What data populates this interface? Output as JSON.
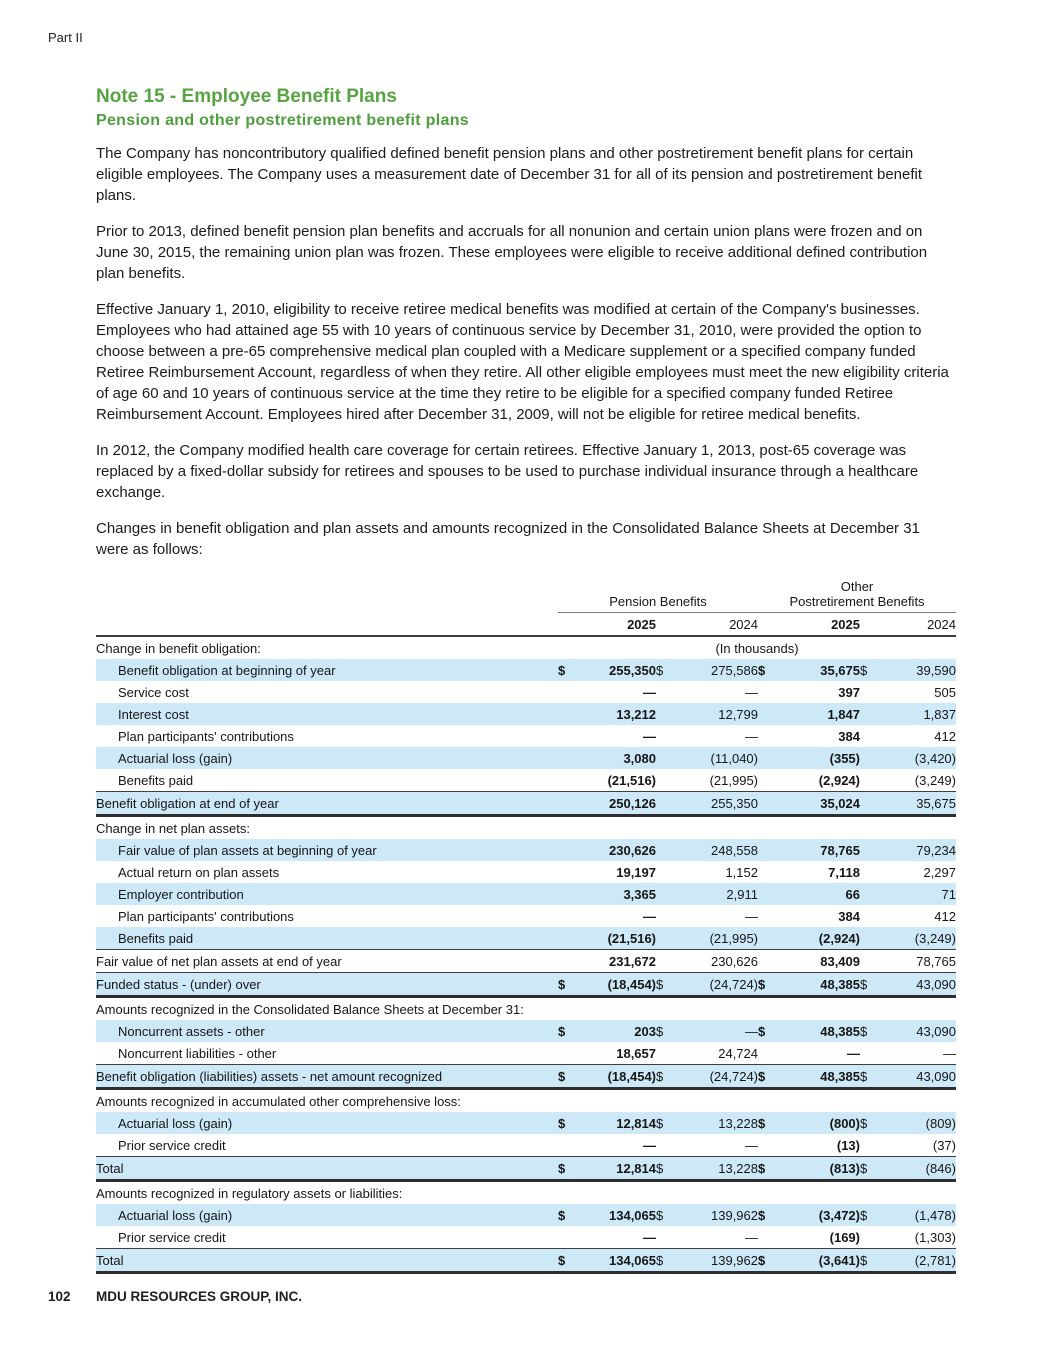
{
  "page": {
    "part_label": "Part II",
    "footer": {
      "page_number": "102",
      "company_name": "MDU RESOURCES GROUP, INC."
    },
    "colors": {
      "heading_green": "#56a442",
      "row_highlight_blue": "#cde9f7"
    }
  },
  "note": {
    "title": "Note 15 - Employee Benefit Plans",
    "subtitle": "Pension and other postretirement benefit plans",
    "paragraphs": [
      "The Company has noncontributory qualified defined benefit pension plans and other postretirement benefit plans for certain eligible employees. The Company uses a measurement date of December 31 for all of its pension and postretirement benefit plans.",
      "Prior to 2013, defined benefit pension plan benefits and accruals for all nonunion and certain union plans were frozen and on June 30, 2015, the remaining union plan was frozen. These employees were eligible to receive additional defined contribution plan benefits.",
      "Effective January 1, 2010, eligibility to receive retiree medical benefits was modified at certain of the Company's businesses. Employees who had attained age 55 with 10 years of continuous service by December 31, 2010, were provided the option to choose between a pre-65 comprehensive medical plan coupled with a Medicare supplement or a specified company funded Retiree Reimbursement Account, regardless of when they retire. All other eligible employees must meet the new eligibility criteria of age 60 and 10 years of continuous service at the time they retire to be eligible for a specified company funded Retiree Reimbursement Account. Employees hired after December 31, 2009, will not be eligible for retiree medical benefits.",
      "In 2012, the Company modified health care coverage for certain retirees. Effective January 1, 2013, post-65 coverage was replaced by a fixed-dollar subsidy for retirees and spouses to be used to purchase individual insurance through a healthcare exchange.",
      "Changes in benefit obligation and plan assets and amounts recognized in the Consolidated Balance Sheets at December 31 were as follows:"
    ]
  },
  "table": {
    "group_headers": {
      "pension": "Pension Benefits",
      "opeb_line1": "Other",
      "opeb_line2": "Postretirement Benefits"
    },
    "year_headers": [
      "2025",
      "2024",
      "2025",
      "2024"
    ],
    "units_note": "(In thousands)",
    "currency_symbol": "$",
    "rows": [
      {
        "label": "Change in benefit obligation:",
        "section": true,
        "shaded": false,
        "units": "(In thousands)"
      },
      {
        "label": "Benefit obligation at beginning of year",
        "indent": true,
        "shaded": true,
        "dollar": true,
        "values": [
          "255,350",
          "275,586",
          "35,675",
          "39,590"
        ]
      },
      {
        "label": "Service cost",
        "indent": true,
        "shaded": false,
        "values": [
          "—",
          "—",
          "397",
          "505"
        ]
      },
      {
        "label": "Interest cost",
        "indent": true,
        "shaded": true,
        "values": [
          "13,212",
          "12,799",
          "1,847",
          "1,837"
        ]
      },
      {
        "label": "Plan participants' contributions",
        "indent": true,
        "shaded": false,
        "values": [
          "—",
          "—",
          "384",
          "412"
        ]
      },
      {
        "label": "Actuarial loss (gain)",
        "indent": true,
        "shaded": true,
        "values": [
          "3,080",
          "(11,040)",
          "(355)",
          "(3,420)"
        ]
      },
      {
        "label": "Benefits paid",
        "indent": true,
        "shaded": false,
        "values": [
          "(21,516)",
          "(21,995)",
          "(2,924)",
          "(3,249)"
        ]
      },
      {
        "label": "Benefit obligation at end of year",
        "shaded": true,
        "values": [
          "250,126",
          "255,350",
          "35,024",
          "35,675"
        ],
        "bt": true,
        "bb": true
      },
      {
        "label": "Change in net plan assets:",
        "section": true,
        "shaded": false
      },
      {
        "label": "Fair value of plan assets at beginning of year",
        "indent": true,
        "shaded": true,
        "values": [
          "230,626",
          "248,558",
          "78,765",
          "79,234"
        ]
      },
      {
        "label": "Actual return on plan assets",
        "indent": true,
        "shaded": false,
        "values": [
          "19,197",
          "1,152",
          "7,118",
          "2,297"
        ]
      },
      {
        "label": "Employer contribution",
        "indent": true,
        "shaded": true,
        "values": [
          "3,365",
          "2,911",
          "66",
          "71"
        ]
      },
      {
        "label": "Plan participants' contributions",
        "indent": true,
        "shaded": false,
        "values": [
          "—",
          "—",
          "384",
          "412"
        ]
      },
      {
        "label": "Benefits paid",
        "indent": true,
        "shaded": true,
        "values": [
          "(21,516)",
          "(21,995)",
          "(2,924)",
          "(3,249)"
        ]
      },
      {
        "label": "Fair value of net plan assets at end of year",
        "shaded": false,
        "values": [
          "231,672",
          "230,626",
          "83,409",
          "78,765"
        ],
        "bt": true
      },
      {
        "label": "Funded status - (under) over",
        "shaded": true,
        "dollar": true,
        "values": [
          "(18,454)",
          "(24,724)",
          "48,385",
          "43,090"
        ],
        "bt": true,
        "bb": true
      },
      {
        "label": "Amounts recognized in the Consolidated Balance Sheets at December 31:",
        "section": true,
        "shaded": false
      },
      {
        "label": "Noncurrent assets - other",
        "indent": true,
        "shaded": true,
        "dollar": true,
        "values": [
          "203",
          "—",
          "48,385",
          "43,090"
        ]
      },
      {
        "label": "Noncurrent liabilities - other",
        "indent": true,
        "shaded": false,
        "values": [
          "18,657",
          "24,724",
          "—",
          "—"
        ]
      },
      {
        "label": "Benefit obligation (liabilities) assets - net amount recognized",
        "shaded": true,
        "dollar": true,
        "values": [
          "(18,454)",
          "(24,724)",
          "48,385",
          "43,090"
        ],
        "bt": true,
        "bb": true
      },
      {
        "label": "Amounts recognized in accumulated other comprehensive loss:",
        "section": true,
        "shaded": false
      },
      {
        "label": "Actuarial loss (gain)",
        "indent": true,
        "shaded": true,
        "dollar": true,
        "values": [
          "12,814",
          "13,228",
          "(800)",
          "(809)"
        ]
      },
      {
        "label": "Prior service credit",
        "indent": true,
        "shaded": false,
        "values": [
          "—",
          "—",
          "(13)",
          "(37)"
        ]
      },
      {
        "label": "Total",
        "shaded": true,
        "dollar": true,
        "values": [
          "12,814",
          "13,228",
          "(813)",
          "(846)"
        ],
        "bt": true,
        "bb": true
      },
      {
        "label": "Amounts recognized in regulatory assets or liabilities:",
        "section": true,
        "shaded": false
      },
      {
        "label": "Actuarial loss (gain)",
        "indent": true,
        "shaded": true,
        "dollar": true,
        "values": [
          "134,065",
          "139,962",
          "(3,472)",
          "(1,478)"
        ]
      },
      {
        "label": "Prior service credit",
        "indent": true,
        "shaded": false,
        "values": [
          "—",
          "—",
          "(169)",
          "(1,303)"
        ]
      },
      {
        "label": "Total",
        "shaded": true,
        "dollar": true,
        "values": [
          "134,065",
          "139,962",
          "(3,641)",
          "(2,781)"
        ],
        "bt": true,
        "bb": true
      }
    ]
  }
}
